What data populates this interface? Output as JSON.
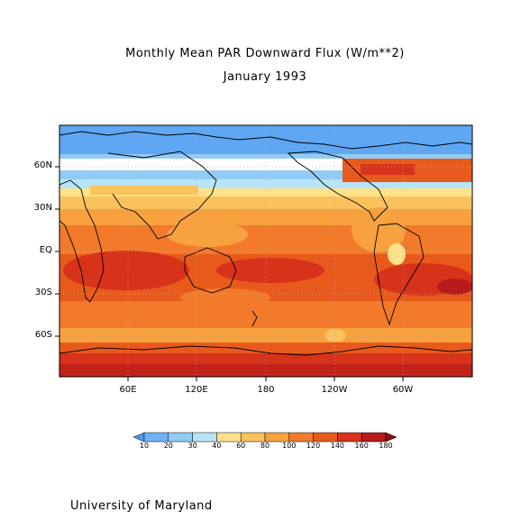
{
  "title": "Monthly Mean PAR Downward Flux (W/m**2)",
  "subtitle": "January 1993",
  "footer": "University of Maryland",
  "lat_labels": [
    "60N",
    "30N",
    "EQ",
    "30S",
    "60S"
  ],
  "lon_labels": [
    "60E",
    "120E",
    "180",
    "120W",
    "60W"
  ],
  "colorbar": {
    "levels": [
      "10",
      "20",
      "30",
      "40",
      "60",
      "80",
      "100",
      "120",
      "140",
      "160",
      "180"
    ],
    "colors": [
      "#4f9bf2",
      "#6fb2f5",
      "#92cbf6",
      "#b8e4f8",
      "#fde28a",
      "#fbc35d",
      "#f7a13f",
      "#f27a2a",
      "#e85a1c",
      "#d7331a",
      "#b81b1b",
      "#8e0f0f"
    ]
  }
}
